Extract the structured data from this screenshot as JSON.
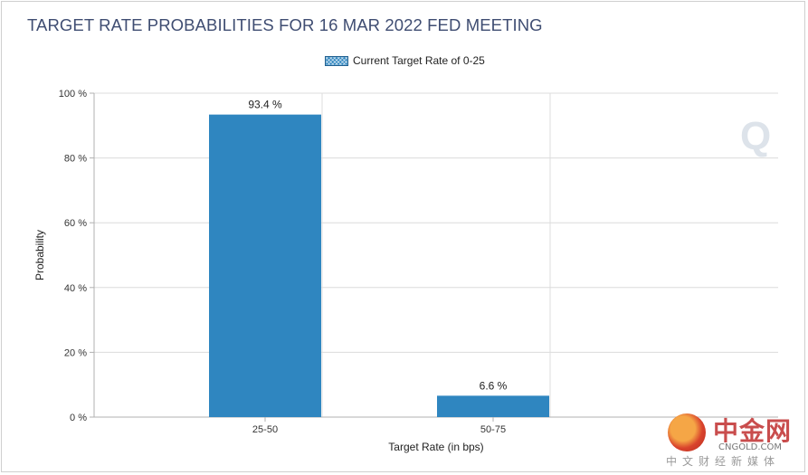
{
  "title": "TARGET RATE PROBABILITIES FOR 16 MAR 2022 FED MEETING",
  "legend": {
    "label": "Current Target Rate of 0-25",
    "position": "top-center"
  },
  "watermark": {
    "cn": "中金网",
    "en": "CNGOLD.COM",
    "sub": "中文财经新媒体",
    "icon": "cngold-logo-icon"
  },
  "chart_data": {
    "type": "bar",
    "title": "TARGET RATE PROBABILITIES FOR 16 MAR 2022 FED MEETING",
    "categories": [
      "25-50",
      "50-75"
    ],
    "series": [
      {
        "name": "Current Target Rate of 0-25",
        "values": [
          93.4,
          6.6
        ]
      }
    ],
    "data_labels": [
      "93.4 %",
      "6.6 %"
    ],
    "xlabel": "Target Rate (in bps)",
    "ylabel": "Probability",
    "ylim": [
      0,
      100
    ],
    "yticks": [
      0,
      20,
      40,
      60,
      80,
      100
    ],
    "ytick_labels": [
      "0 %",
      "20 %",
      "40 %",
      "60 %",
      "80 %",
      "100 %"
    ],
    "grid": true,
    "bar_color": "#2f86c0"
  }
}
